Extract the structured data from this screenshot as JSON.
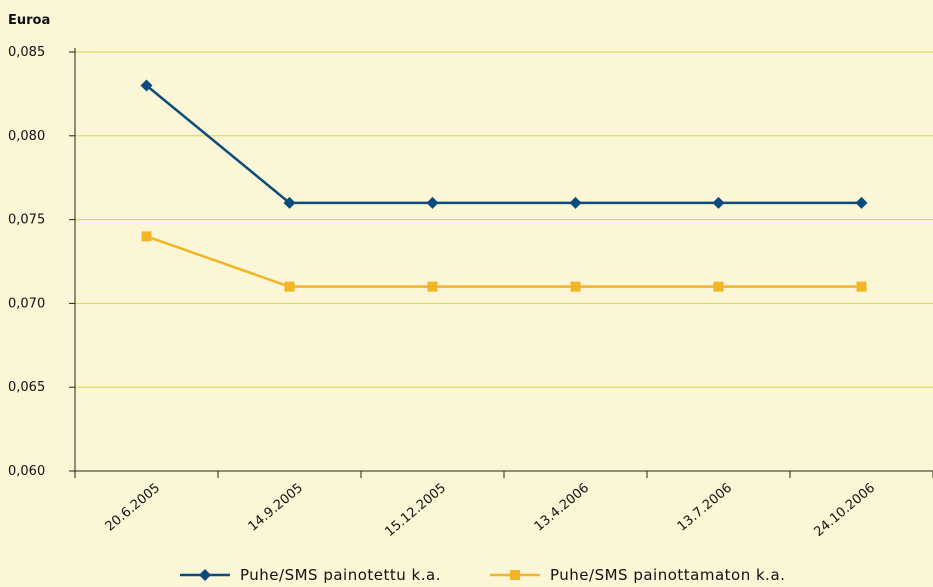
{
  "chart_data": {
    "type": "line",
    "ylabel": "Euroa",
    "categories": [
      "20.6.2005",
      "14.9.2005",
      "15.12.2005",
      "13.4.2006",
      "13.7.2006",
      "24.10.2006"
    ],
    "ylim": [
      0.06,
      0.085
    ],
    "yticks": [
      "0,060",
      "0,065",
      "0,070",
      "0,075",
      "0,080",
      "0,085"
    ],
    "ytick_values": [
      0.06,
      0.065,
      0.07,
      0.075,
      0.08,
      0.085
    ],
    "grid": true,
    "legend_position": "bottom",
    "series": [
      {
        "name": "Puhe/SMS painotettu k.a.",
        "values": [
          0.083,
          0.076,
          0.076,
          0.076,
          0.076,
          0.076
        ],
        "color": "#0d4a7e",
        "marker": "diamond"
      },
      {
        "name": "Puhe/SMS painottamaton k.a.",
        "values": [
          0.074,
          0.071,
          0.071,
          0.071,
          0.071,
          0.071
        ],
        "color": "#f3b526",
        "marker": "square"
      }
    ],
    "colors": {
      "background": "#fbf6d6",
      "gridline": "#d6d84a",
      "axis": "#222222"
    }
  }
}
